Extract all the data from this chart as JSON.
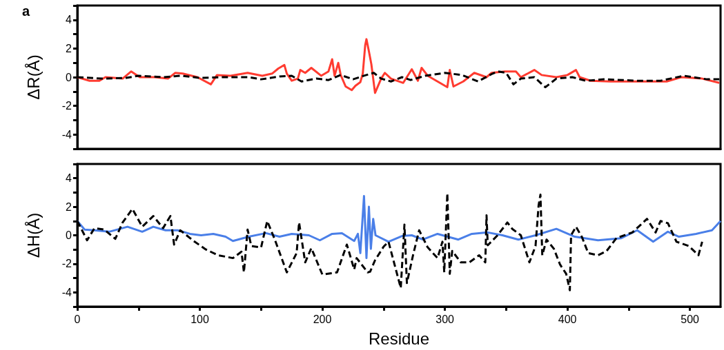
{
  "chart_data": [
    {
      "type": "line",
      "ylabel": "ΔR(Å)",
      "annotations": [
        "a"
      ],
      "xlim": [
        0,
        525
      ],
      "ylim": [
        -5,
        5
      ],
      "yticks": [
        {
          "value": -5,
          "label": null
        },
        -4,
        {
          "value": -3,
          "label": null
        },
        -2,
        {
          "value": -1,
          "label": null
        },
        0,
        {
          "value": 1,
          "label": null
        },
        2,
        {
          "value": 3,
          "label": null
        },
        4,
        {
          "value": 5,
          "label": null
        }
      ],
      "tick_labels": "y",
      "grid": false,
      "marker": "none",
      "series": [
        {
          "color": "#ff3b30",
          "line_style": "solid",
          "x": [
            0,
            10,
            18,
            23,
            37,
            44,
            51,
            63,
            74,
            80,
            86,
            98,
            109,
            114,
            125,
            139,
            151,
            159,
            164,
            169,
            171,
            175,
            180,
            182,
            186,
            191,
            199,
            205,
            208,
            210,
            213,
            215,
            219,
            224,
            227,
            231,
            233,
            235,
            236,
            238,
            240,
            243,
            248,
            251,
            256,
            266,
            273,
            278,
            281,
            286,
            302,
            304,
            307,
            315,
            324,
            334,
            338,
            349,
            358,
            362,
            373,
            379,
            391,
            400,
            407,
            410,
            419,
            435,
            458,
            481,
            493,
            510,
            524
          ],
          "values": [
            0,
            -0.25,
            -0.25,
            0,
            -0.1,
            0.4,
            0,
            0,
            -0.1,
            0.3,
            0.25,
            0,
            -0.5,
            0.15,
            0.1,
            0.3,
            0.1,
            0.25,
            0.6,
            0.85,
            0.25,
            -0.25,
            -0.1,
            0.5,
            0.3,
            0.65,
            0.1,
            0.4,
            1.25,
            0.1,
            1.0,
            0.15,
            -0.65,
            -0.9,
            -0.6,
            -0.35,
            0.25,
            2.25,
            2.65,
            1.8,
            0.9,
            -1.1,
            -0.1,
            0.3,
            -0.1,
            -0.4,
            0.55,
            -0.25,
            0.65,
            0.1,
            -0.7,
            0.5,
            -0.65,
            -0.3,
            0.3,
            0,
            0.3,
            0.4,
            0.4,
            0,
            0.5,
            0.15,
            0,
            0.15,
            0.5,
            0,
            -0.25,
            -0.3,
            -0.3,
            -0.3,
            0,
            -0.1,
            -0.4
          ]
        },
        {
          "color": "#000000",
          "line_style": "dashed",
          "x": [
            0,
            20,
            40,
            50,
            70,
            85,
            100,
            120,
            140,
            150,
            165,
            175,
            183,
            195,
            205,
            215,
            225,
            234,
            242,
            248,
            256,
            265,
            272,
            284,
            300,
            314,
            327,
            339,
            343,
            350,
            356,
            362,
            373,
            382,
            391,
            404,
            415,
            430,
            457,
            476,
            495,
            514,
            524
          ],
          "values": [
            0,
            -0.1,
            -0.05,
            0.1,
            0,
            0.1,
            -0.05,
            0,
            0,
            -0.15,
            0.05,
            0.1,
            -0.3,
            -0.1,
            -0.2,
            0.15,
            -0.15,
            0.1,
            0.3,
            -0.1,
            -0.3,
            0,
            -0.2,
            0.1,
            0.3,
            0.15,
            -0.3,
            0.25,
            0.4,
            0.3,
            -0.5,
            -0.1,
            0,
            -0.7,
            -0.1,
            0,
            -0.25,
            -0.15,
            -0.25,
            -0.25,
            0.1,
            -0.15,
            -0.15
          ]
        }
      ]
    },
    {
      "type": "line",
      "ylabel": "ΔH(Å)",
      "xlabel": "Residue",
      "xlim": [
        0,
        525
      ],
      "xticks": [
        0,
        {
          "value": 50,
          "label": null
        },
        100,
        {
          "value": 150,
          "label": null
        },
        200,
        {
          "value": 250,
          "label": null
        },
        300,
        {
          "value": 350,
          "label": null
        },
        400,
        {
          "value": 450,
          "label": null
        },
        500
      ],
      "ylim": [
        -5,
        5
      ],
      "yticks": [
        {
          "value": -5,
          "label": null
        },
        -4,
        {
          "value": -3,
          "label": null
        },
        -2,
        {
          "value": -1,
          "label": null
        },
        0,
        {
          "value": 1,
          "label": null
        },
        2,
        {
          "value": 3,
          "label": null
        },
        4,
        {
          "value": 5,
          "label": null
        }
      ],
      "grid": false,
      "marker": "none",
      "series": [
        {
          "color": "#4a7fe8",
          "line_style": "solid",
          "x": [
            0,
            6,
            14,
            26,
            41,
            53,
            62,
            72,
            82,
            92,
            101,
            111,
            121,
            127,
            140,
            154,
            165,
            175,
            189,
            198,
            208,
            216,
            226,
            229,
            231,
            234,
            236,
            238,
            239.6,
            241.5,
            243.4,
            254,
            265,
            273,
            282,
            294,
            311,
            322,
            335,
            347,
            360,
            374,
            391,
            406,
            425,
            444,
            457,
            470,
            482,
            491,
            505,
            518,
            525
          ],
          "values": [
            1.0,
            0.4,
            0.35,
            0.25,
            0.6,
            0.25,
            0.6,
            0.35,
            0.35,
            0.1,
            0,
            0.1,
            -0.1,
            -0.4,
            -0.1,
            0.15,
            -0.1,
            0.1,
            0,
            -0.35,
            0.1,
            0.15,
            -0.4,
            0.1,
            -1.25,
            2.75,
            -1.6,
            2.0,
            -0.95,
            1.15,
            0,
            -0.45,
            -0.05,
            0,
            -0.3,
            0.1,
            -0.3,
            0.1,
            0.2,
            0,
            -0.3,
            0,
            0.45,
            -0.1,
            -0.35,
            -0.2,
            0.35,
            -0.45,
            0.25,
            -0.1,
            0.1,
            0.35,
            1.0
          ]
        },
        {
          "color": "#000000",
          "line_style": "dashed",
          "x": [
            0,
            8,
            14,
            22,
            31,
            37,
            45,
            53,
            62,
            70,
            76,
            79,
            84,
            95,
            105,
            115,
            127,
            134,
            136,
            139,
            142,
            150,
            155,
            161,
            171,
            179,
            181,
            186,
            191,
            200,
            212,
            220,
            226,
            228,
            237,
            239,
            243,
            250,
            254,
            258,
            264,
            267,
            269,
            274,
            279,
            286,
            294,
            298,
            299.5,
            302,
            304,
            306,
            313,
            320,
            328,
            333,
            334,
            335,
            343,
            351,
            355,
            362,
            369,
            374,
            376.5,
            378,
            379.5,
            383,
            389,
            394,
            399,
            402,
            403,
            407,
            412,
            417,
            425,
            432,
            440,
            453,
            465,
            472,
            476,
            482,
            489,
            499,
            507,
            510
          ],
          "values": [
            1.0,
            -0.35,
            0.5,
            0.4,
            -0.25,
            0.9,
            1.85,
            0.6,
            1.35,
            0.5,
            1.35,
            -0.65,
            0.35,
            -0.4,
            -1.0,
            -1.4,
            -1.6,
            -1.15,
            -2.6,
            0.4,
            -0.75,
            -0.85,
            1.0,
            -0.25,
            -2.6,
            -1.25,
            0.9,
            -1.9,
            -0.9,
            -2.75,
            -2.6,
            -0.65,
            -2.4,
            -1.6,
            -2.6,
            -2.55,
            -1.75,
            -0.8,
            -0.45,
            -1.75,
            -3.7,
            0.75,
            -3.35,
            -1.4,
            0.35,
            -0.85,
            -1.6,
            -0.45,
            -2.6,
            2.95,
            -2.7,
            -1.1,
            -1.9,
            -1.9,
            -1.4,
            -1.9,
            1.4,
            -0.7,
            0,
            0.9,
            0.45,
            0,
            -1.9,
            -0.75,
            2.1,
            2.85,
            -1.4,
            -0.3,
            -0.95,
            -2.05,
            -2.7,
            -3.85,
            0,
            0.6,
            -0.15,
            -1.25,
            -1.4,
            -1.1,
            -0.2,
            0.2,
            1.15,
            0.2,
            1.0,
            0.85,
            -0.45,
            -0.75,
            -1.4,
            -0.45
          ]
        }
      ]
    }
  ]
}
